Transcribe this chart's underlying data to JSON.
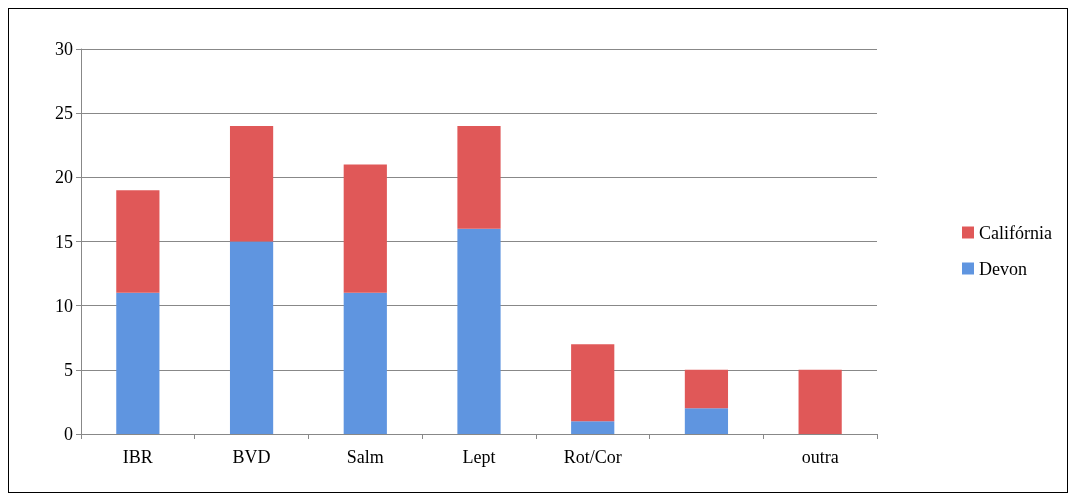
{
  "chart_data": {
    "type": "bar",
    "stacked": true,
    "categories": [
      "IBR",
      "BVD",
      "Salm",
      "Lept",
      "Rot/Cor",
      null,
      "outra"
    ],
    "series": [
      {
        "name": "Devon",
        "color": "#5f95e0",
        "values": [
          11,
          15,
          11,
          16,
          1,
          2,
          0
        ]
      },
      {
        "name": "Califórnia",
        "color": "#e05858",
        "values": [
          8,
          9,
          10,
          8,
          6,
          3,
          5
        ]
      }
    ],
    "ylim": [
      0,
      30
    ],
    "yticks": [
      0,
      5,
      10,
      15,
      20,
      25,
      30
    ],
    "grid": "y",
    "legend": "right"
  }
}
